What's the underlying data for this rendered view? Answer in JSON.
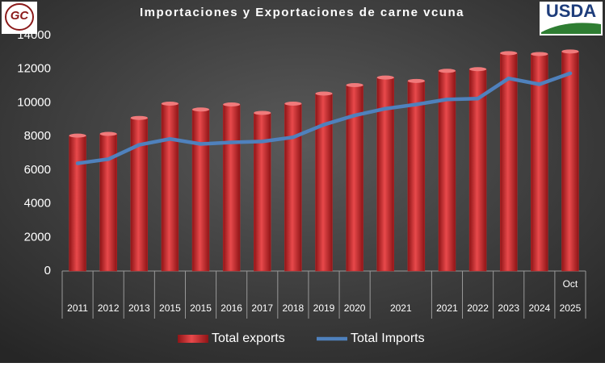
{
  "logos": {
    "left": "GC",
    "right": "USDA"
  },
  "chart_data": {
    "type": "bar",
    "title": "Importaciones y Exportaciones de carne vcuna",
    "categories": [
      "2011",
      "2012",
      "2013",
      "2015",
      "2015",
      "2016",
      "2017",
      "2018",
      "2019",
      "2020",
      "2021",
      null,
      "2021",
      "2022",
      "2023",
      "2024",
      "2025"
    ],
    "annotations": [
      {
        "category_index": 16,
        "text": "Oct"
      }
    ],
    "series": [
      {
        "name": "Total exports",
        "type": "bar",
        "color": "#c0292b",
        "values": [
          8050,
          8150,
          9100,
          9950,
          9600,
          9900,
          9400,
          9950,
          10550,
          11050,
          11500,
          11300,
          11900,
          12000,
          12950,
          12900,
          13050
        ]
      },
      {
        "name": "Total Imports",
        "type": "line",
        "color": "#4f81bd",
        "values": [
          6400,
          6650,
          7500,
          7850,
          7550,
          7650,
          7700,
          7950,
          8700,
          9250,
          9650,
          9900,
          10200,
          10250,
          11450,
          11100,
          11750
        ]
      }
    ],
    "ylim": [
      0,
      14000
    ],
    "yticks": [
      0,
      2000,
      4000,
      6000,
      8000,
      10000,
      12000,
      14000
    ],
    "grid": false,
    "legend": "bottom"
  }
}
